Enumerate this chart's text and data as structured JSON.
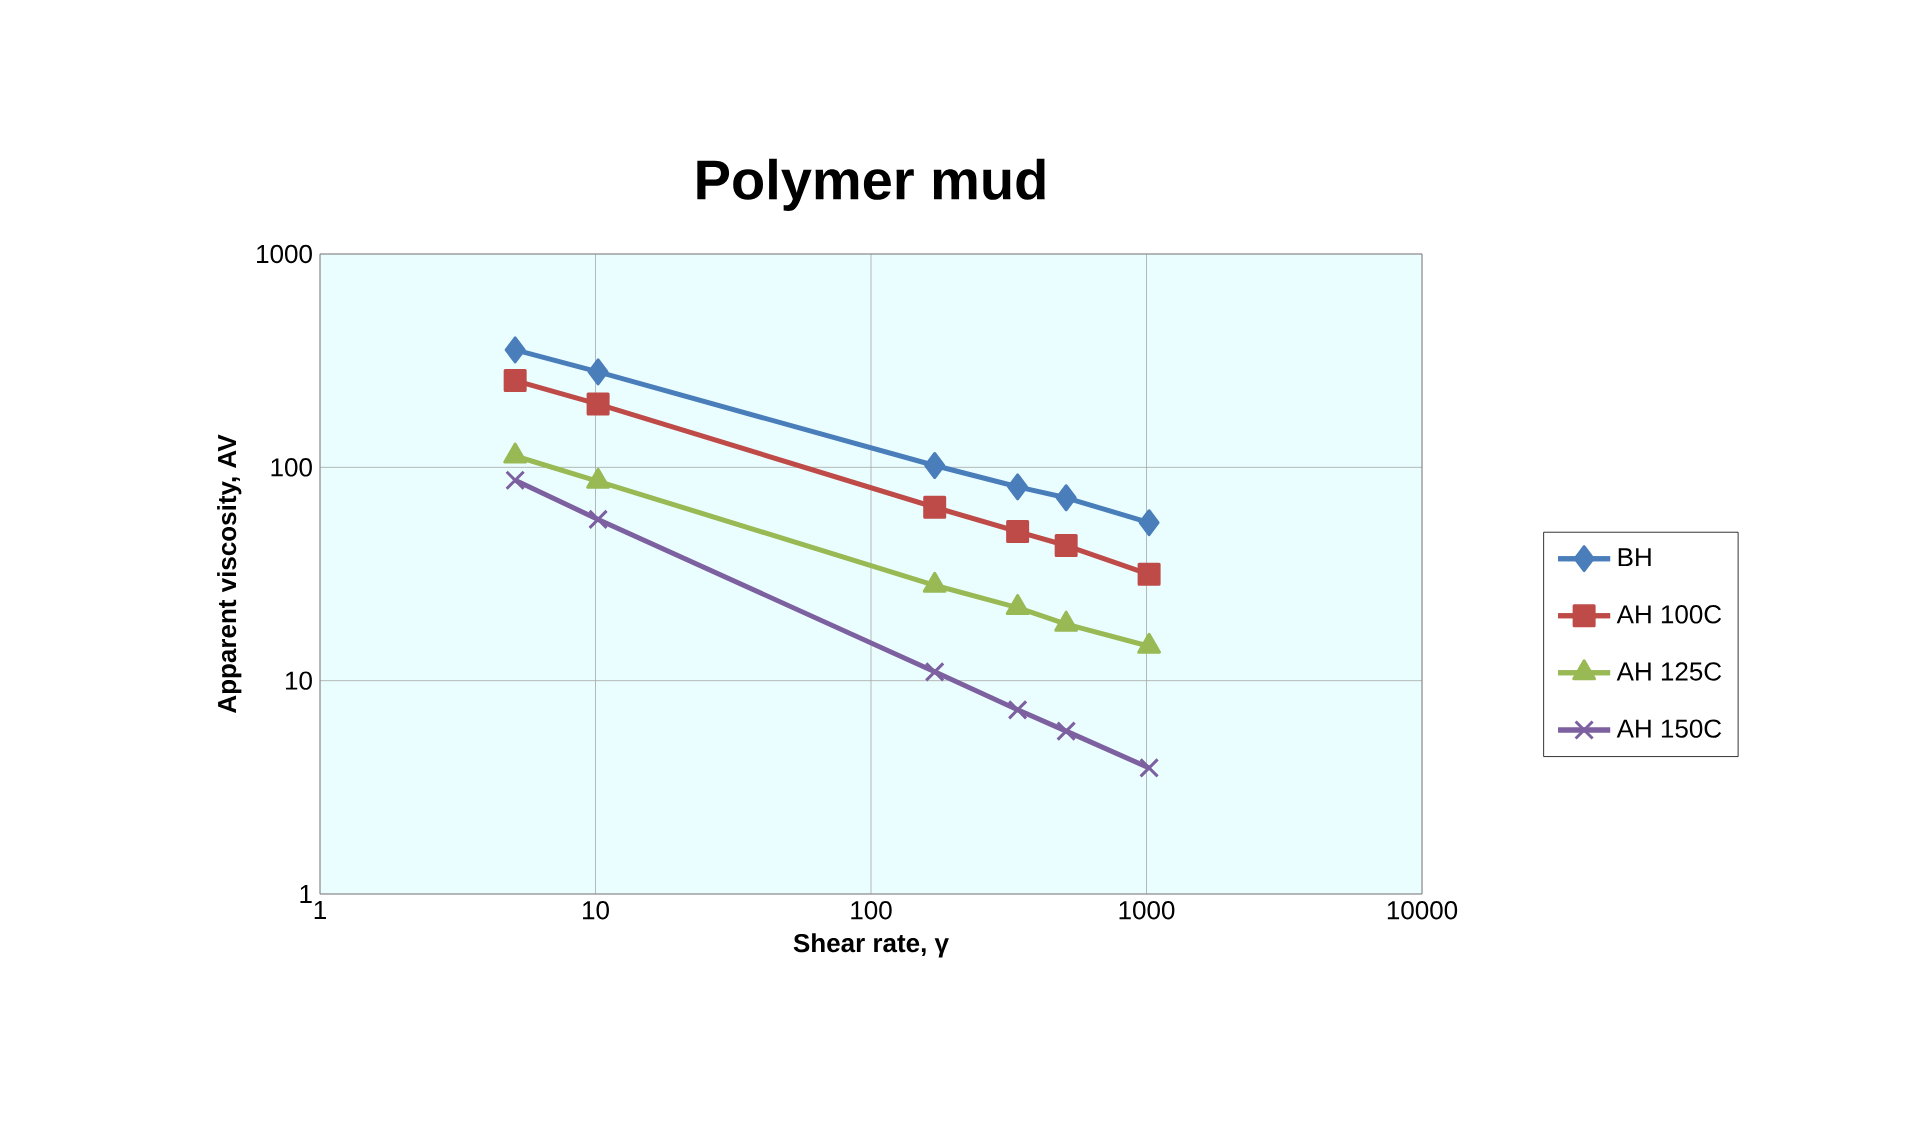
{
  "chart_data": {
    "type": "line",
    "title": "Polymer mud",
    "xlabel": "Shear rate, γ",
    "ylabel": "Apparent viscosity, AV",
    "log": "xy",
    "xlim": [
      1,
      10000
    ],
    "xticks": [
      1,
      10,
      100,
      1000,
      10000
    ],
    "ylim": [
      1,
      1000
    ],
    "yticks": [
      1,
      10,
      100,
      1000
    ],
    "grid": true,
    "legend": "right",
    "line_style": "solid",
    "x": [
      5.11,
      10.22,
      170.3,
      340.6,
      511,
      1022
    ],
    "series": [
      {
        "name": "BH",
        "color": "#4a7ebb",
        "marker": "diamond",
        "values": [
          355,
          280,
          102,
          81,
          72,
          55
        ]
      },
      {
        "name": "AH 100C",
        "color": "#be4b48",
        "marker": "square",
        "values": [
          255,
          198,
          65,
          50,
          43,
          31.5
        ]
      },
      {
        "name": "AH 125C",
        "color": "#98b954",
        "marker": "triangle",
        "values": [
          113,
          86,
          28,
          22,
          18.4,
          14.5
        ]
      },
      {
        "name": "AH 150C",
        "color": "#7d60a0",
        "marker": "cross",
        "values": [
          87,
          57,
          11,
          7.3,
          5.8,
          3.9
        ]
      }
    ]
  }
}
